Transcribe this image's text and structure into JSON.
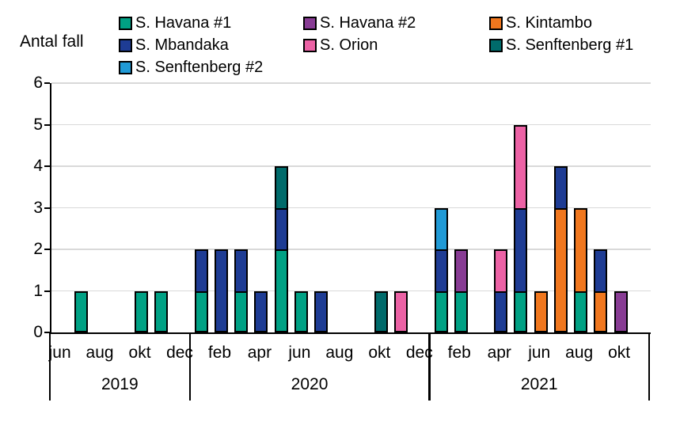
{
  "chart_data": {
    "type": "bar",
    "stacked": true,
    "title": "Antal fall",
    "ylabel": "Antal fall",
    "xlabel": "",
    "ylim": [
      0,
      6
    ],
    "yticks": [
      0,
      1,
      2,
      3,
      4,
      5,
      6
    ],
    "grid": true,
    "legend_position": "top",
    "gridline_color": "#d9d9d9",
    "axis_color": "#000000",
    "series": [
      {
        "name": "S. Havana #1",
        "color": "#00A184"
      },
      {
        "name": "S. Havana #2",
        "color": "#883C94"
      },
      {
        "name": "S. Kintambo",
        "color": "#F0771E"
      },
      {
        "name": "S. Mbandaka",
        "color": "#1E3C94"
      },
      {
        "name": "S. Orion",
        "color": "#EC62A5"
      },
      {
        "name": "S. Senftenberg #1",
        "color": "#006B6B"
      },
      {
        "name": "S. Senftenberg #2",
        "color": "#209AD6"
      }
    ],
    "values_note": "values arrays follow series order: [Havana#1, Havana#2, Kintambo, Mbandaka, Orion, Senftenberg#1, Senftenberg#2]",
    "years": [
      {
        "year": "2019",
        "months": [
          {
            "m": "jun",
            "label": "jun",
            "values": [
              0,
              0,
              0,
              0,
              0,
              0,
              0
            ]
          },
          {
            "m": "jul",
            "label": "",
            "values": [
              1,
              0,
              0,
              0,
              0,
              0,
              0
            ]
          },
          {
            "m": "aug",
            "label": "aug",
            "values": [
              0,
              0,
              0,
              0,
              0,
              0,
              0
            ]
          },
          {
            "m": "sep",
            "label": "",
            "values": [
              0,
              0,
              0,
              0,
              0,
              0,
              0
            ]
          },
          {
            "m": "okt",
            "label": "okt",
            "values": [
              1,
              0,
              0,
              0,
              0,
              0,
              0
            ]
          },
          {
            "m": "nov",
            "label": "",
            "values": [
              1,
              0,
              0,
              0,
              0,
              0,
              0
            ]
          },
          {
            "m": "dec",
            "label": "dec",
            "values": [
              0,
              0,
              0,
              0,
              0,
              0,
              0
            ]
          }
        ]
      },
      {
        "year": "2020",
        "months": [
          {
            "m": "jan",
            "label": "",
            "values": [
              1,
              0,
              0,
              1,
              0,
              0,
              0
            ]
          },
          {
            "m": "feb",
            "label": "feb",
            "values": [
              0,
              0,
              0,
              2,
              0,
              0,
              0
            ]
          },
          {
            "m": "mar",
            "label": "",
            "values": [
              1,
              0,
              0,
              1,
              0,
              0,
              0
            ]
          },
          {
            "m": "apr",
            "label": "apr",
            "values": [
              0,
              0,
              0,
              1,
              0,
              0,
              0
            ]
          },
          {
            "m": "maj",
            "label": "",
            "values": [
              2,
              0,
              0,
              1,
              0,
              1,
              0
            ]
          },
          {
            "m": "jun",
            "label": "jun",
            "values": [
              1,
              0,
              0,
              0,
              0,
              0,
              0
            ]
          },
          {
            "m": "jul",
            "label": "",
            "values": [
              0,
              0,
              0,
              1,
              0,
              0,
              0
            ]
          },
          {
            "m": "aug",
            "label": "aug",
            "values": [
              0,
              0,
              0,
              0,
              0,
              0,
              0
            ]
          },
          {
            "m": "sep",
            "label": "",
            "values": [
              0,
              0,
              0,
              0,
              0,
              0,
              0
            ]
          },
          {
            "m": "okt",
            "label": "okt",
            "values": [
              0,
              0,
              0,
              0,
              0,
              1,
              0
            ]
          },
          {
            "m": "nov",
            "label": "",
            "values": [
              0,
              0,
              0,
              0,
              1,
              0,
              0
            ]
          },
          {
            "m": "dec",
            "label": "dec",
            "values": [
              0,
              0,
              0,
              0,
              0,
              0,
              0
            ]
          }
        ]
      },
      {
        "year": "2021",
        "months": [
          {
            "m": "jan",
            "label": "",
            "values": [
              1,
              0,
              0,
              1,
              0,
              0,
              1
            ]
          },
          {
            "m": "feb",
            "label": "feb",
            "values": [
              1,
              1,
              0,
              0,
              0,
              0,
              0
            ]
          },
          {
            "m": "mar",
            "label": "",
            "values": [
              0,
              0,
              0,
              0,
              0,
              0,
              0
            ]
          },
          {
            "m": "apr",
            "label": "apr",
            "values": [
              0,
              0,
              0,
              1,
              1,
              0,
              0
            ]
          },
          {
            "m": "maj",
            "label": "",
            "values": [
              1,
              0,
              0,
              2,
              2,
              0,
              0
            ]
          },
          {
            "m": "jun",
            "label": "jun",
            "values": [
              0,
              0,
              1,
              0,
              0,
              0,
              0
            ]
          },
          {
            "m": "jul",
            "label": "",
            "values": [
              0,
              0,
              3,
              1,
              0,
              0,
              0
            ]
          },
          {
            "m": "aug",
            "label": "aug",
            "values": [
              1,
              0,
              2,
              0,
              0,
              0,
              0
            ]
          },
          {
            "m": "sep",
            "label": "",
            "values": [
              0,
              0,
              1,
              1,
              0,
              0,
              0
            ]
          },
          {
            "m": "okt",
            "label": "okt",
            "values": [
              0,
              1,
              0,
              0,
              0,
              0,
              0
            ]
          },
          {
            "m": "nov",
            "label": "",
            "values": [
              0,
              0,
              0,
              0,
              0,
              0,
              0
            ]
          }
        ]
      }
    ]
  }
}
